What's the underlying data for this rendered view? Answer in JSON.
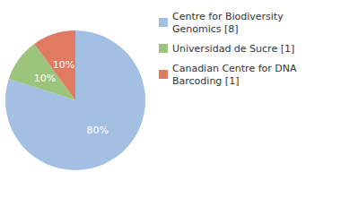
{
  "chart_data": {
    "type": "pie",
    "categories": [
      "Centre for Biodiversity Genomics [8]",
      "Universidad de Sucre [1]",
      "Canadian Centre for DNA Barcoding [1]"
    ],
    "values": [
      80,
      10,
      10
    ],
    "value_labels": [
      "80%",
      "10%",
      "10%"
    ],
    "colors": [
      "#a3bfe2",
      "#9dc47c",
      "#e07b62"
    ],
    "data_labels": true,
    "legend": "top-right"
  }
}
